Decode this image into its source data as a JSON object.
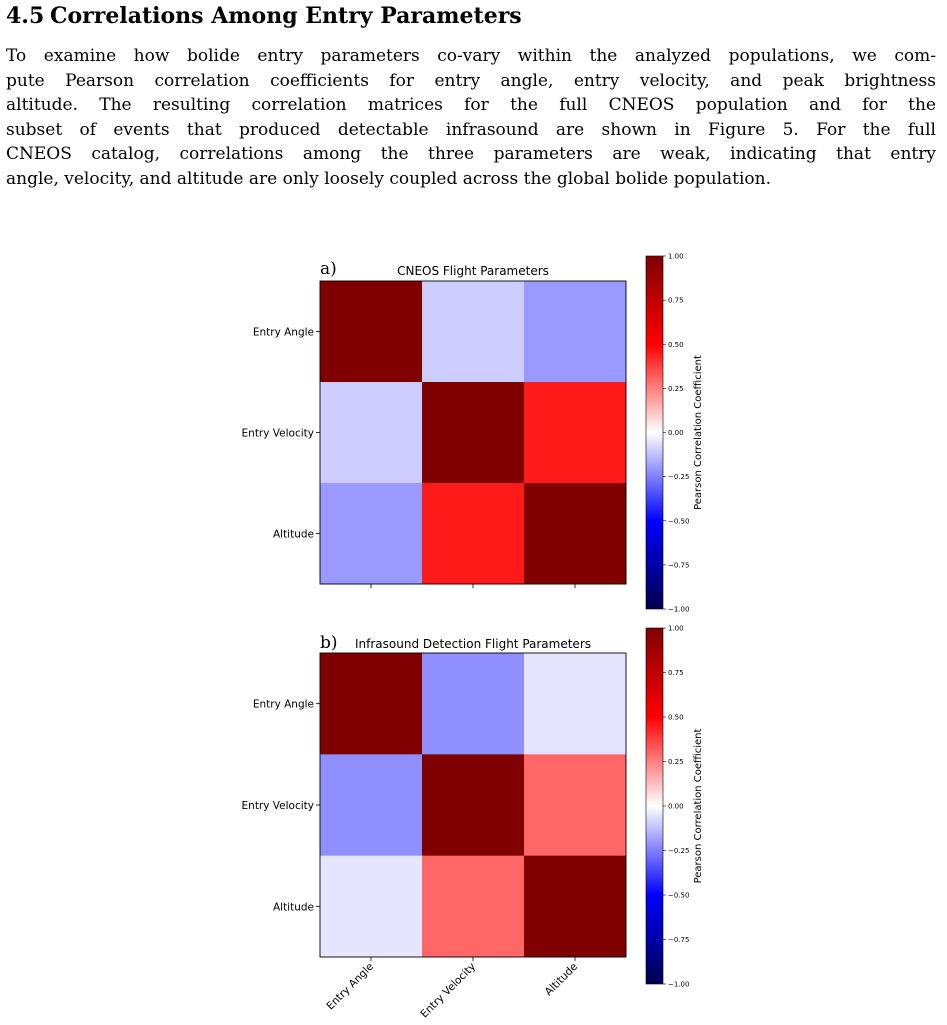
{
  "section": {
    "number": "4.5",
    "title": "Correlations Among Entry Parameters"
  },
  "paragraph": {
    "lines": [
      "To examine how bolide entry parameters co-vary within the analyzed populations, we com-",
      "pute Pearson correlation coefficients for entry angle, entry velocity, and peak brightness",
      "altitude.  The resulting correlation matrices for the full CNEOS population and for the",
      "subset of events that produced detectable infrasound are shown in Figure 5.  For the full",
      "CNEOS catalog, correlations among the three parameters are weak, indicating that entry",
      "angle, velocity, and altitude are only loosely coupled across the global bolide population."
    ]
  },
  "colors": {
    "colormap": "seismic",
    "colormap_low": "#00004d",
    "colormap_mid": "#ffffff",
    "colormap_high": "#800000"
  },
  "chart_data": [
    {
      "type": "heatmap",
      "panel_letter": "a)",
      "title": "CNEOS Flight Parameters",
      "row_labels": [
        "Entry Angle",
        "Entry Velocity",
        "Altitude"
      ],
      "col_labels": [],
      "values": [
        [
          1.0,
          -0.1,
          -0.2
        ],
        [
          -0.1,
          1.0,
          0.45
        ],
        [
          -0.2,
          0.45,
          1.0
        ]
      ],
      "colorbar": {
        "label": "Pearson Correlation Coefficient",
        "range": [
          -1.0,
          1.0
        ],
        "ticks": [
          "1.00",
          "0.75",
          "0.50",
          "0.25",
          "0.00",
          "−0.25",
          "−0.50",
          "−0.75",
          "−1.00"
        ]
      }
    },
    {
      "type": "heatmap",
      "panel_letter": "b)",
      "title": "Infrasound Detection Flight Parameters",
      "row_labels": [
        "Entry Angle",
        "Entry Velocity",
        "Altitude"
      ],
      "col_labels": [
        "Entry Angle",
        "Entry Velocity",
        "Altitude"
      ],
      "values": [
        [
          1.0,
          -0.22,
          -0.05
        ],
        [
          -0.22,
          1.0,
          0.3
        ],
        [
          -0.05,
          0.3,
          1.0
        ]
      ],
      "colorbar": {
        "label": "Pearson Correlation Coefficient",
        "range": [
          -1.0,
          1.0
        ],
        "ticks": [
          "1.00",
          "0.75",
          "0.50",
          "0.25",
          "0.00",
          "−0.25",
          "−0.50",
          "−0.75",
          "−1.00"
        ]
      }
    }
  ]
}
